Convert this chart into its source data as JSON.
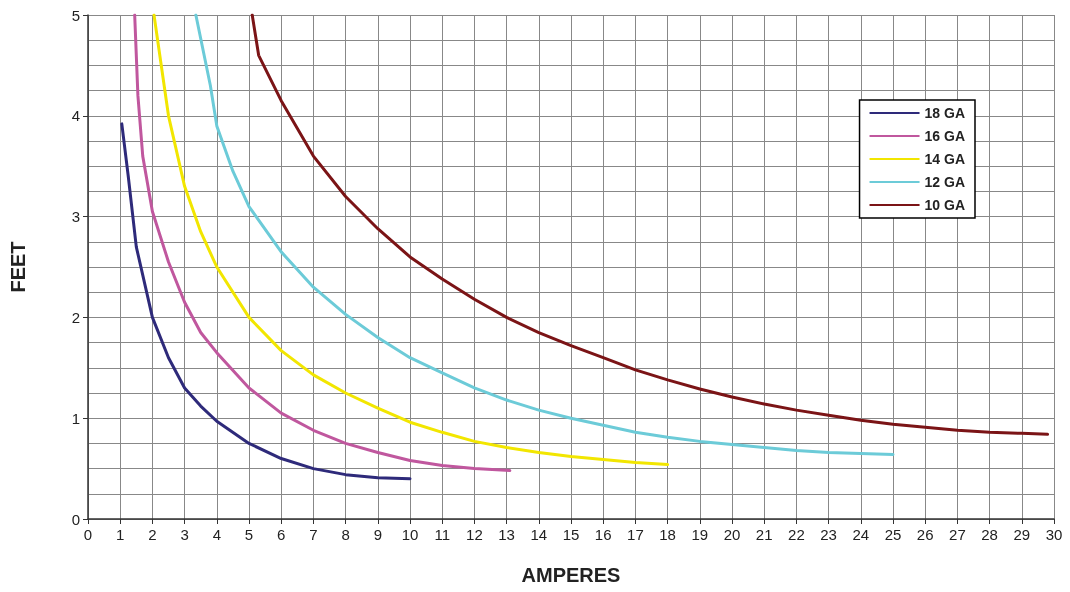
{
  "chart_data": {
    "type": "line",
    "xlabel": "AMPERES",
    "ylabel": "FEET",
    "xlim": [
      0,
      30
    ],
    "ylim": [
      0,
      5
    ],
    "xticks": [
      0,
      1,
      2,
      3,
      4,
      5,
      6,
      7,
      8,
      9,
      10,
      11,
      12,
      13,
      14,
      15,
      16,
      17,
      18,
      19,
      20,
      21,
      22,
      23,
      24,
      25,
      26,
      27,
      28,
      29,
      30
    ],
    "yticks": [
      0,
      1,
      2,
      3,
      4,
      5
    ],
    "grid": true,
    "legend": "top right",
    "marker": "none",
    "line_style": "solid",
    "series": [
      {
        "name": "18 GA",
        "color": "#2e2a7a",
        "x": [
          1.05,
          1.25,
          1.5,
          2,
          2.5,
          3,
          3.5,
          4,
          5,
          6,
          7,
          8,
          9,
          10
        ],
        "values": [
          3.92,
          3.4,
          2.7,
          2.0,
          1.6,
          1.3,
          1.12,
          0.97,
          0.75,
          0.6,
          0.5,
          0.44,
          0.41,
          0.4
        ]
      },
      {
        "name": "16 GA",
        "color": "#c0579e",
        "x": [
          1.45,
          1.55,
          1.7,
          2,
          2.5,
          3,
          3.5,
          4,
          5,
          6,
          7,
          8,
          9,
          10,
          11,
          12,
          13.1
        ],
        "values": [
          5,
          4.2,
          3.6,
          3.05,
          2.55,
          2.15,
          1.85,
          1.65,
          1.3,
          1.05,
          0.88,
          0.75,
          0.66,
          0.58,
          0.53,
          0.5,
          0.48
        ]
      },
      {
        "name": "14 GA",
        "color": "#f2e600",
        "x": [
          2.05,
          2.5,
          3,
          3.5,
          4,
          5,
          6,
          7,
          8,
          9,
          10,
          11,
          12,
          13,
          14,
          15,
          16,
          17,
          18
        ],
        "values": [
          5,
          4.0,
          3.3,
          2.85,
          2.5,
          2.0,
          1.67,
          1.43,
          1.25,
          1.1,
          0.96,
          0.86,
          0.77,
          0.71,
          0.66,
          0.62,
          0.59,
          0.56,
          0.54
        ]
      },
      {
        "name": "12 GA",
        "color": "#6ccbd8",
        "x": [
          3.35,
          3.8,
          4,
          4.5,
          5,
          6,
          7,
          8,
          9,
          10,
          11,
          12,
          13,
          14,
          15,
          16,
          17,
          18,
          19,
          20,
          21,
          22,
          23,
          24,
          25
        ],
        "values": [
          5,
          4.3,
          3.9,
          3.45,
          3.1,
          2.65,
          2.3,
          2.03,
          1.8,
          1.6,
          1.45,
          1.3,
          1.18,
          1.08,
          1.0,
          0.93,
          0.86,
          0.81,
          0.77,
          0.74,
          0.71,
          0.68,
          0.66,
          0.65,
          0.64
        ]
      },
      {
        "name": "10 GA",
        "color": "#7b1416",
        "x": [
          5.1,
          5.3,
          6,
          7,
          8,
          9,
          10,
          11,
          12,
          13,
          14,
          15,
          16,
          17,
          18,
          19,
          20,
          21,
          22,
          23,
          24,
          25,
          26,
          27,
          28,
          29,
          29.8
        ],
        "values": [
          5,
          4.6,
          4.15,
          3.6,
          3.2,
          2.88,
          2.6,
          2.38,
          2.18,
          2.0,
          1.85,
          1.72,
          1.6,
          1.48,
          1.38,
          1.29,
          1.21,
          1.14,
          1.08,
          1.03,
          0.98,
          0.94,
          0.91,
          0.88,
          0.86,
          0.85,
          0.84
        ]
      }
    ]
  }
}
